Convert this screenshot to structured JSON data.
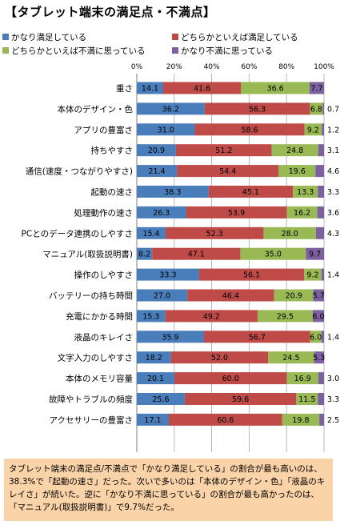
{
  "page": {
    "title": "【タブレット端末の満足点・不満点】",
    "note": "タブレット端末の満足点/不満点で「かなり満足している」の割合が最も高いのは、38.3%で「起動の速さ」だった。次いで多いのは「本体のデザイン・色」「液晶のキレイさ」が続いた。逆に「かなり不満に思っている」の割合が最も高かったのは、「マニュアル(取扱説明書)」で9.7%だった。"
  },
  "chart_data": {
    "type": "bar",
    "orientation": "horizontal",
    "stacked": true,
    "title": "【タブレット端末の満足点・不満点】",
    "xlim": [
      0,
      100
    ],
    "x_ticks": [
      "0%",
      "20%",
      "40%",
      "60%",
      "80%",
      "100%"
    ],
    "grid": true,
    "legend_position": "top",
    "categories": [
      "重さ",
      "本体のデザイン・色",
      "アプリの豊富さ",
      "持ちやすさ",
      "通信(速度・つながりやすさ)",
      "起動の速さ",
      "処理動作の速さ",
      "PCとのデータ連携のしやすさ",
      "マニュアル(取扱説明書)",
      "操作のしやすさ",
      "バッテリーの持ち時間",
      "充電にかかる時間",
      "液晶のキレイさ",
      "文字入力のしやすさ",
      "本体のメモリ容量",
      "故障やトラブルの頻度",
      "アクセサリーの豊富さ"
    ],
    "series": [
      {
        "name": "かなり満足している",
        "color": "#4a7ebb",
        "values": [
          14.1,
          36.2,
          31.0,
          20.9,
          21.4,
          38.3,
          26.3,
          15.4,
          8.2,
          33.3,
          27.0,
          15.3,
          35.9,
          18.2,
          20.1,
          25.6,
          17.1
        ]
      },
      {
        "name": "どちらかといえば満足している",
        "color": "#be4b48",
        "values": [
          41.6,
          56.3,
          58.6,
          51.2,
          54.4,
          45.1,
          53.9,
          52.3,
          47.1,
          56.1,
          46.4,
          49.2,
          56.7,
          52.0,
          60.0,
          59.6,
          60.6
        ]
      },
      {
        "name": "どちらかといえば不満に思っている",
        "color": "#98b954",
        "values": [
          36.6,
          6.8,
          9.2,
          24.8,
          19.6,
          13.3,
          16.2,
          28.0,
          35.0,
          9.2,
          20.9,
          29.5,
          6.0,
          24.5,
          16.9,
          11.5,
          19.8
        ]
      },
      {
        "name": "かなり不満に思っている",
        "color": "#7d60a0",
        "values": [
          7.7,
          0.7,
          1.2,
          3.1,
          4.6,
          3.3,
          3.6,
          4.3,
          9.7,
          1.4,
          5.7,
          6.0,
          1.4,
          5.3,
          3.0,
          3.3,
          2.5
        ]
      }
    ]
  }
}
